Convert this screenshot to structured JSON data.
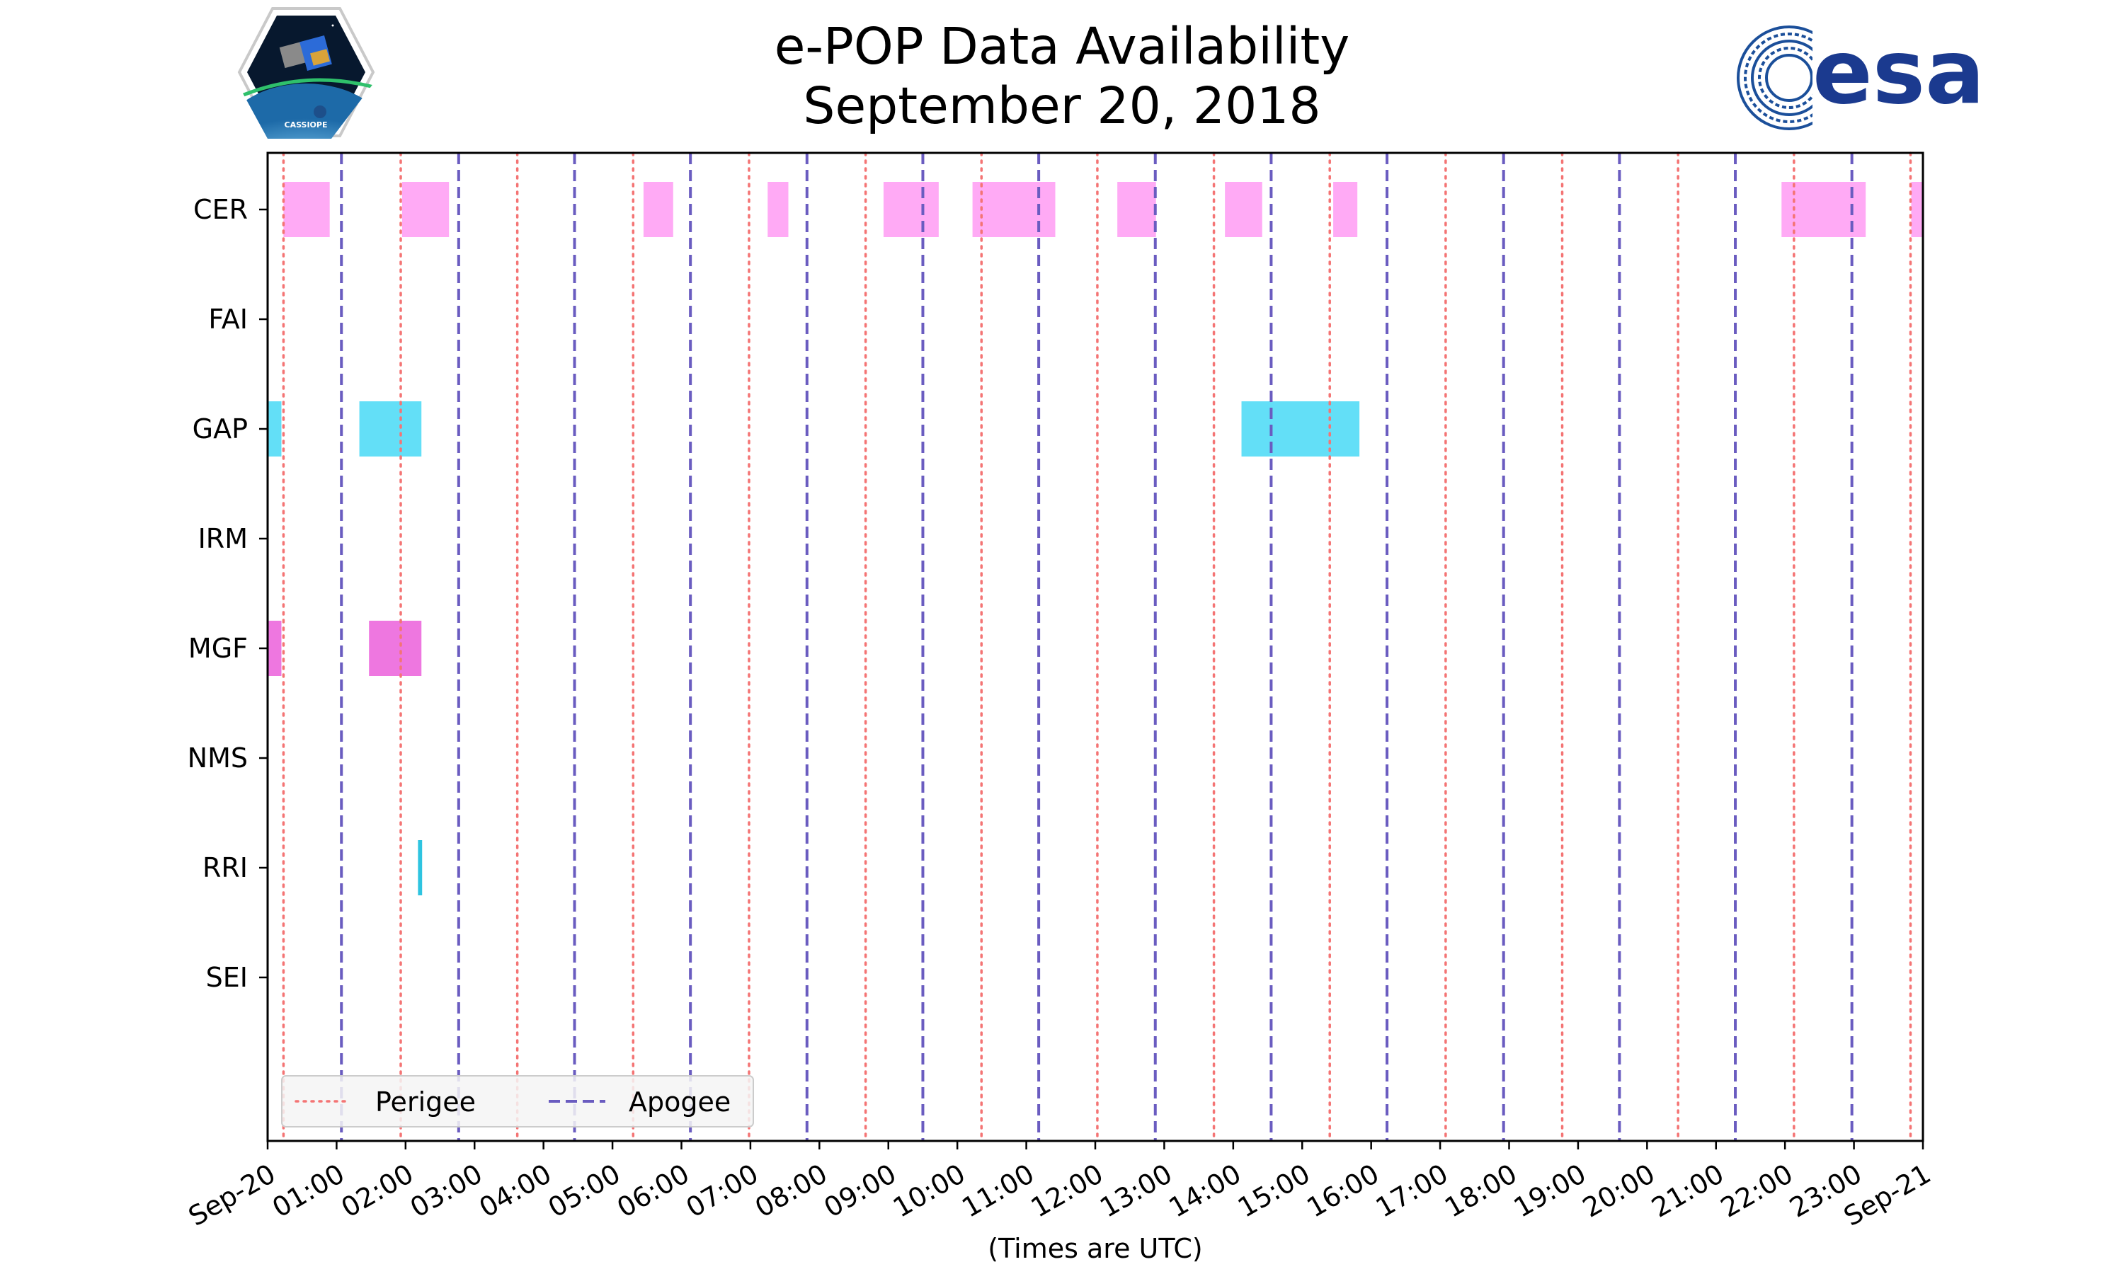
{
  "chart_data": {
    "type": "timeline",
    "title_line1": "e-POP Data Availability",
    "title_line2": "September 20, 2018",
    "xlabel": "(Times are UTC)",
    "x_unit": "hours UTC",
    "xlim": [
      0,
      24
    ],
    "x_ticks": [
      {
        "value": 0,
        "label": "Sep-20"
      },
      {
        "value": 1,
        "label": "01:00"
      },
      {
        "value": 2,
        "label": "02:00"
      },
      {
        "value": 3,
        "label": "03:00"
      },
      {
        "value": 4,
        "label": "04:00"
      },
      {
        "value": 5,
        "label": "05:00"
      },
      {
        "value": 6,
        "label": "06:00"
      },
      {
        "value": 7,
        "label": "07:00"
      },
      {
        "value": 8,
        "label": "08:00"
      },
      {
        "value": 9,
        "label": "09:00"
      },
      {
        "value": 10,
        "label": "10:00"
      },
      {
        "value": 11,
        "label": "11:00"
      },
      {
        "value": 12,
        "label": "12:00"
      },
      {
        "value": 13,
        "label": "13:00"
      },
      {
        "value": 14,
        "label": "14:00"
      },
      {
        "value": 15,
        "label": "15:00"
      },
      {
        "value": 16,
        "label": "16:00"
      },
      {
        "value": 17,
        "label": "17:00"
      },
      {
        "value": 18,
        "label": "18:00"
      },
      {
        "value": 19,
        "label": "19:00"
      },
      {
        "value": 20,
        "label": "20:00"
      },
      {
        "value": 21,
        "label": "21:00"
      },
      {
        "value": 22,
        "label": "22:00"
      },
      {
        "value": 23,
        "label": "23:00"
      },
      {
        "value": 24,
        "label": "Sep-21"
      }
    ],
    "instruments": [
      "CER",
      "FAI",
      "GAP",
      "IRM",
      "MGF",
      "NMS",
      "RRI",
      "SEI"
    ],
    "colors": {
      "CER": "#ffaaf5",
      "GAP": "#63dff7",
      "MGF": "#ee77e0",
      "RRI": "#2ec4e0",
      "perigee": "#f47474",
      "apogee": "#6a5cc0"
    },
    "intervals": [
      {
        "instrument": "CER",
        "start": 0.23,
        "end": 0.9
      },
      {
        "instrument": "CER",
        "start": 1.95,
        "end": 2.63
      },
      {
        "instrument": "CER",
        "start": 5.45,
        "end": 5.88
      },
      {
        "instrument": "CER",
        "start": 7.25,
        "end": 7.55
      },
      {
        "instrument": "CER",
        "start": 8.93,
        "end": 9.73
      },
      {
        "instrument": "CER",
        "start": 10.22,
        "end": 11.42
      },
      {
        "instrument": "CER",
        "start": 12.32,
        "end": 12.88
      },
      {
        "instrument": "CER",
        "start": 13.88,
        "end": 14.42
      },
      {
        "instrument": "CER",
        "start": 15.45,
        "end": 15.8
      },
      {
        "instrument": "CER",
        "start": 21.95,
        "end": 23.17
      },
      {
        "instrument": "CER",
        "start": 23.83,
        "end": 24.0
      },
      {
        "instrument": "GAP",
        "start": 0.0,
        "end": 0.2
      },
      {
        "instrument": "GAP",
        "start": 1.33,
        "end": 2.23
      },
      {
        "instrument": "GAP",
        "start": 14.12,
        "end": 15.83
      },
      {
        "instrument": "MGF",
        "start": 0.0,
        "end": 0.2
      },
      {
        "instrument": "MGF",
        "start": 1.47,
        "end": 2.23
      },
      {
        "instrument": "RRI",
        "start": 2.18,
        "end": 2.24
      }
    ],
    "perigee_times": [
      0.23,
      1.93,
      3.62,
      5.3,
      6.98,
      8.67,
      10.35,
      12.03,
      13.72,
      15.4,
      17.08,
      18.77,
      20.45,
      22.13,
      23.82
    ],
    "apogee_times": [
      1.07,
      2.77,
      4.45,
      6.13,
      7.82,
      9.5,
      11.18,
      12.87,
      14.55,
      16.23,
      17.92,
      19.6,
      21.28,
      22.97
    ],
    "legend": {
      "placement": "lower-left",
      "entries": [
        "Perigee",
        "Apogee"
      ]
    }
  },
  "logos": {
    "left": "CASSIOPE",
    "right": "esa"
  }
}
